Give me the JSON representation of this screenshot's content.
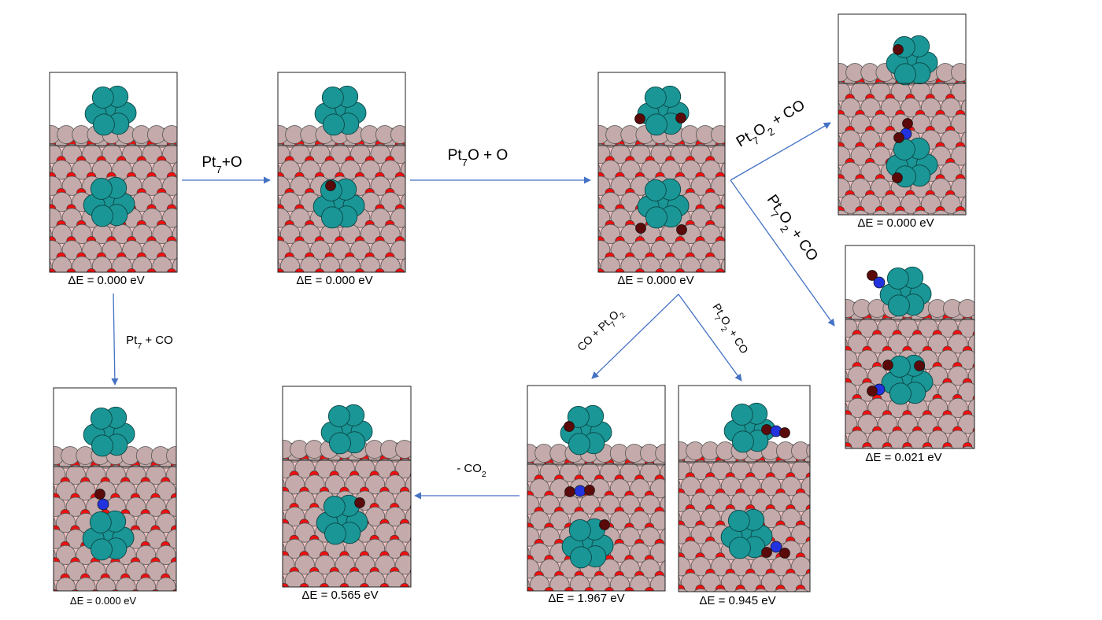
{
  "colors": {
    "arrow": "#4472c4",
    "pt_atom": "#1a9696",
    "ce_atom": "#c4aaaa",
    "o_atom": "#ee0f0f",
    "o_ads": "#5a0a0a",
    "c_atom": "#2233dd",
    "support_bg": "#f6c4c4"
  },
  "panels": [
    {
      "id": "p1",
      "energy_label": "ΔE = 0.000 eV",
      "structure": "Pt7 on CeO2"
    },
    {
      "id": "p2",
      "energy_label": "ΔE = 0.000 eV",
      "structure": "Pt7O on CeO2"
    },
    {
      "id": "p3",
      "energy_label": "ΔE = 0.000 eV",
      "structure": "Pt7O2 on CeO2"
    },
    {
      "id": "p4",
      "energy_label": "ΔE = 0.000 eV",
      "structure": "Pt7O2 + CO"
    },
    {
      "id": "p5",
      "energy_label": "ΔE = 0.021 eV",
      "structure": "Pt7O2 + CO"
    },
    {
      "id": "p6",
      "energy_label": "ΔE = 0.000 eV",
      "structure": "Pt7 + CO"
    },
    {
      "id": "p7",
      "energy_label": "ΔE = 0.565 eV",
      "structure": "Pt7O after CO2"
    },
    {
      "id": "p8",
      "energy_label": "ΔE = 1.967 eV",
      "structure": "CO + Pt7O2"
    },
    {
      "id": "p9",
      "energy_label": "ΔE = 0.945 eV",
      "structure": "Pt7O2 + CO"
    }
  ],
  "steps": [
    {
      "id": "a1",
      "label": "Pt7+O"
    },
    {
      "id": "a2",
      "label": "Pt7O + O"
    },
    {
      "id": "a3",
      "label": "Pt7O2 + CO"
    },
    {
      "id": "a4",
      "label": "Pt7O2 + CO"
    },
    {
      "id": "a5",
      "label": "Pt7 + CO"
    },
    {
      "id": "a6",
      "label": "CO + Pt7O2"
    },
    {
      "id": "a7",
      "label": "Pt7O2 + CO"
    },
    {
      "id": "a8",
      "label": "- CO2"
    }
  ]
}
